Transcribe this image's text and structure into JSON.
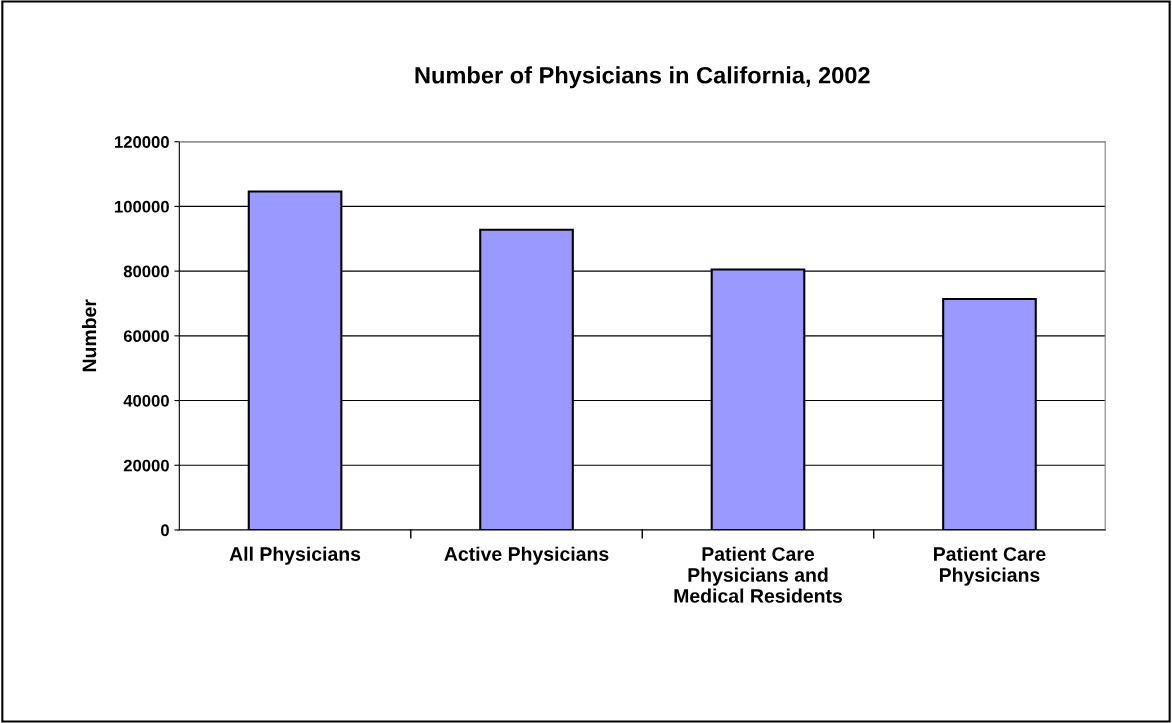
{
  "chart_data": {
    "type": "bar",
    "title": "Number of Physicians in California, 2002",
    "ylabel": "Number",
    "categories": [
      "All Physicians",
      "Active Physicians",
      "Patient Care Physicians and Medical Residents",
      "Patient Care Physicians"
    ],
    "values": [
      104600,
      92800,
      80500,
      71400
    ],
    "color": "#9999ff",
    "ylim": [
      0,
      120000
    ],
    "yticks": [
      0,
      20000,
      40000,
      60000,
      80000,
      100000,
      120000
    ],
    "grid": "y",
    "legend": false
  }
}
